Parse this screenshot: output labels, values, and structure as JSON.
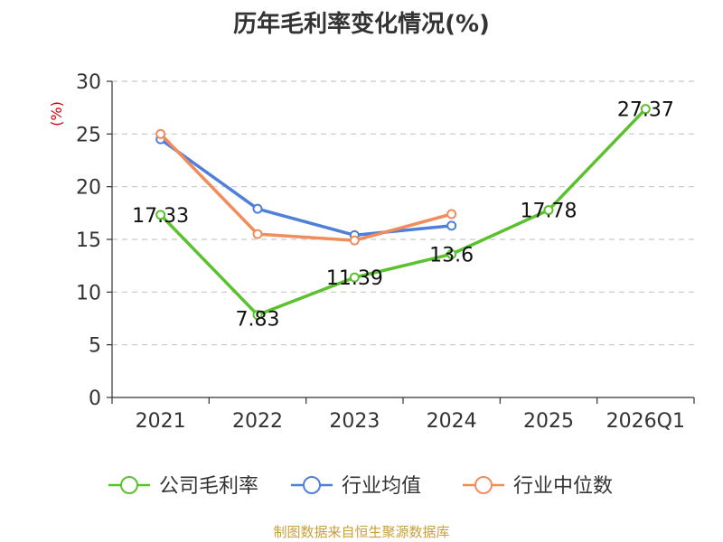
{
  "chart_data": {
    "type": "line",
    "title": "历年毛利率变化情况(%)",
    "ylabel": "(%)",
    "xlabel": "",
    "categories": [
      "2021",
      "2022",
      "2023",
      "2024",
      "2025",
      "2026Q1"
    ],
    "ylim": [
      0,
      30
    ],
    "yticks": [
      0,
      5,
      10,
      15,
      20,
      25,
      30
    ],
    "grid": true,
    "legend_position": "bottom",
    "series": [
      {
        "name": "公司毛利率",
        "color": "#5cc12f",
        "values": [
          17.33,
          7.83,
          11.39,
          13.6,
          17.78,
          27.37
        ],
        "labels": [
          "17.33",
          "7.83",
          "11.39",
          "13.6",
          "17.78",
          "27.37"
        ]
      },
      {
        "name": "行业均值",
        "color": "#4f7fd9",
        "values": [
          24.5,
          17.9,
          15.4,
          16.3,
          null,
          null
        ]
      },
      {
        "name": "行业中位数",
        "color": "#f28c5c",
        "values": [
          25.0,
          15.5,
          14.9,
          17.4,
          null,
          null
        ]
      }
    ]
  },
  "source": "制图数据来自恒生聚源数据库"
}
